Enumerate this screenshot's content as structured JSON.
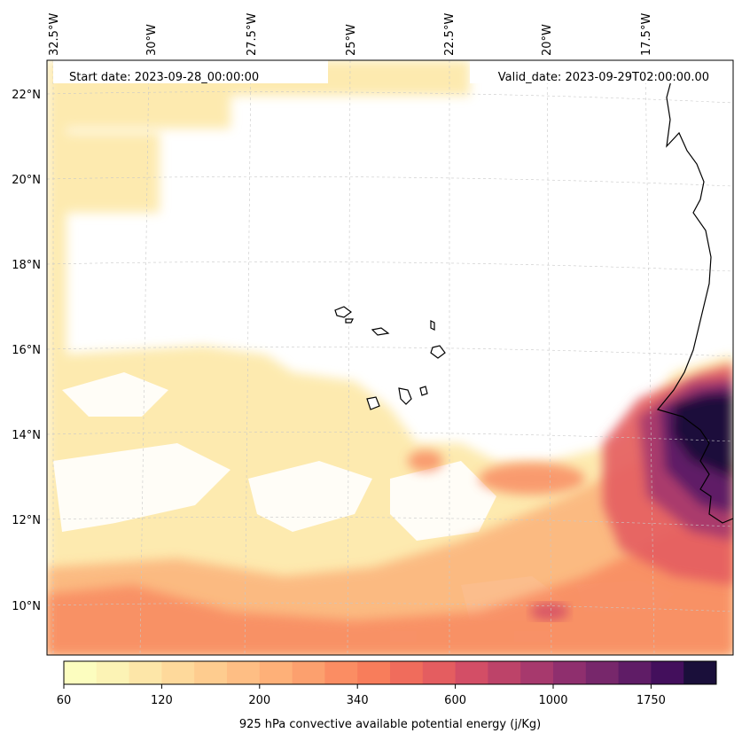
{
  "chart_data": {
    "type": "heatmap",
    "title": "",
    "start_date_label": "Start date: 2023-09-28_00:00:00",
    "valid_date_label": "Valid_date: 2023-09-29T02:00:00.00",
    "colorbar_label": "925 hPa convective available potential energy (j/Kg)",
    "colorbar_ticks": [
      "60",
      "120",
      "200",
      "340",
      "600",
      "1000",
      "1750"
    ],
    "longitude_labels": [
      "32.5°W",
      "30°W",
      "27.5°W",
      "25°W",
      "22.5°W",
      "20°W",
      "17.5°W"
    ],
    "latitude_labels": [
      "22°N",
      "20°N",
      "18°N",
      "16°N",
      "14°N",
      "12°N",
      "10°N"
    ],
    "lon_range": [
      -33,
      -16
    ],
    "lat_range": [
      8.9,
      22.8
    ],
    "levels": [
      60,
      80,
      100,
      120,
      150,
      180,
      200,
      250,
      300,
      340,
      400,
      500,
      600,
      700,
      800,
      1000,
      1200,
      1500,
      1750,
      2000,
      2500
    ],
    "colors": [
      "#fcfdbf",
      "#fcf3b5",
      "#fde6a8",
      "#fed99b",
      "#fecc8f",
      "#febe84",
      "#feb078",
      "#fca06e",
      "#fb8d63",
      "#f87d5b",
      "#f06c5c",
      "#e45d60",
      "#d34e66",
      "#bd4369",
      "#a7396d",
      "#8f2f6e",
      "#77276b",
      "#5f1c66",
      "#430f5c",
      "#1a0f3a"
    ],
    "high_cape_regions": [
      "West African coast near 14°N",
      "Band 9–13°N across the Atlantic"
    ]
  }
}
